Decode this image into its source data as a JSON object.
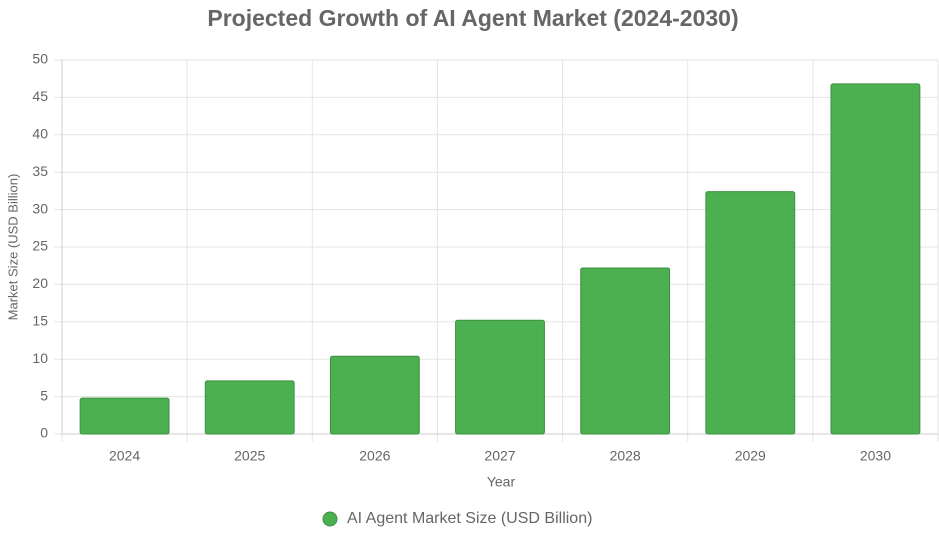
{
  "chart_data": {
    "type": "bar",
    "title": "Projected Growth of AI Agent Market (2024-2030)",
    "x_label": "Year",
    "y_label": "Market Size (USD Billion)",
    "categories": [
      "2024",
      "2025",
      "2026",
      "2027",
      "2028",
      "2029",
      "2030"
    ],
    "series": [
      {
        "name": "AI Agent Market Size (USD Billion)",
        "color": "#4caf50",
        "values": [
          4.8,
          7.1,
          10.4,
          15.2,
          22.2,
          32.4,
          46.8
        ]
      }
    ],
    "ylim": [
      0,
      50
    ],
    "yticks": [
      0,
      5,
      10,
      15,
      20,
      25,
      30,
      35,
      40,
      45,
      50
    ],
    "grid": true
  }
}
